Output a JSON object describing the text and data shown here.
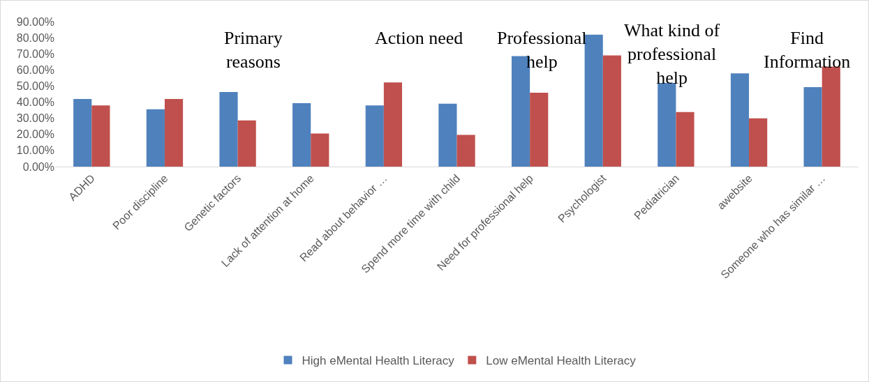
{
  "chart_data": {
    "type": "bar",
    "categories": [
      "ADHD",
      "Poor discipline",
      "Genetic factors",
      "Lack of attention at home",
      "Read about behavior …",
      "Spend more time with child",
      "Need for professional help",
      "Psychologist",
      "Pediatrician",
      "awebsite",
      "Someone who has similar …"
    ],
    "series": [
      {
        "name": "High eMental Health Literacy",
        "color": "#4f81bd",
        "values": [
          42,
          35.6,
          46.3,
          39.4,
          38,
          39,
          68.6,
          81.9,
          51.9,
          57.9,
          49.3
        ]
      },
      {
        "name": "Low eMental Health Literacy",
        "color": "#c0504d",
        "values": [
          38,
          42,
          28.7,
          20.6,
          52.3,
          19.7,
          45.9,
          69,
          33.9,
          30,
          62.1
        ]
      }
    ],
    "ylim": [
      0,
      90
    ],
    "yticks": [
      {
        "value": 0,
        "label": "0.00%"
      },
      {
        "value": 10,
        "label": "10.00%"
      },
      {
        "value": 20,
        "label": "20.00%"
      },
      {
        "value": 30,
        "label": "30.00%"
      },
      {
        "value": 40,
        "label": "40.00%"
      },
      {
        "value": 50,
        "label": "50.00%"
      },
      {
        "value": 60,
        "label": "60.00%"
      },
      {
        "value": 70,
        "label": "70.00%"
      },
      {
        "value": 80,
        "label": "80.00%"
      },
      {
        "value": 90,
        "label": "90.00%"
      }
    ],
    "annotations": [
      "Primary\nreasons",
      "Action need",
      "Professional\nhelp",
      "What kind of\nprofessional\nhelp",
      "Find\nInformation"
    ],
    "grid": false,
    "legend": "bottom"
  }
}
